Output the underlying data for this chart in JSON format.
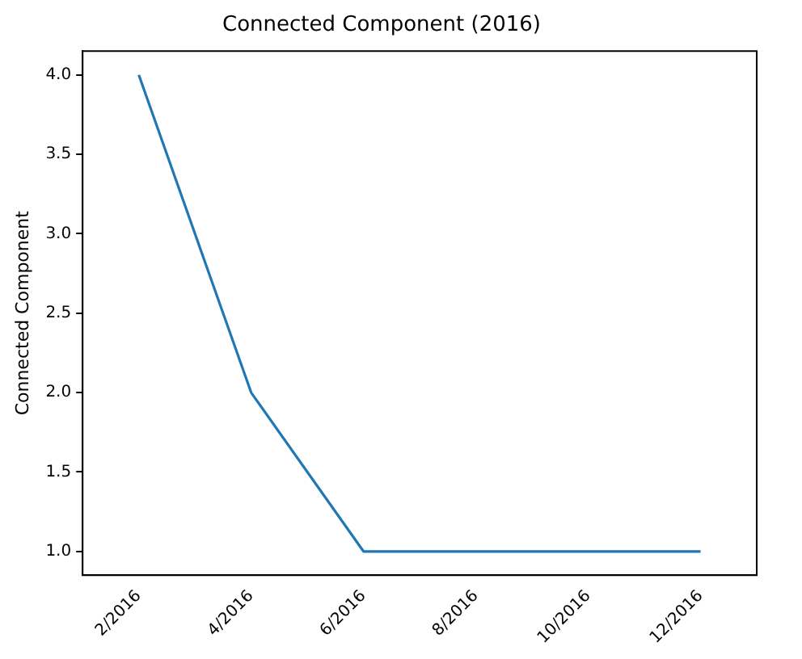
{
  "chart_data": {
    "type": "line",
    "title": "Connected Component (2016)",
    "ylabel": "Connected Component",
    "categories": [
      "2/2016",
      "4/2016",
      "6/2016",
      "8/2016",
      "10/2016",
      "12/2016"
    ],
    "series": [
      {
        "color": "#1f77b4",
        "values": [
          4,
          2,
          1,
          1,
          1,
          1
        ]
      }
    ],
    "ylim": [
      0.85,
      4.15
    ],
    "yticks": [
      {
        "value": 1,
        "label": "1.0"
      },
      {
        "value": 1.5,
        "label": "1.5"
      },
      {
        "value": 2,
        "label": "2.0"
      },
      {
        "value": 2.5,
        "label": "2.5"
      },
      {
        "value": 3,
        "label": "3.0"
      },
      {
        "value": 3.5,
        "label": "3.5"
      },
      {
        "value": 4,
        "label": "4.0"
      }
    ],
    "grid": false,
    "legend": false,
    "marker": "none",
    "line_style": "solid"
  }
}
